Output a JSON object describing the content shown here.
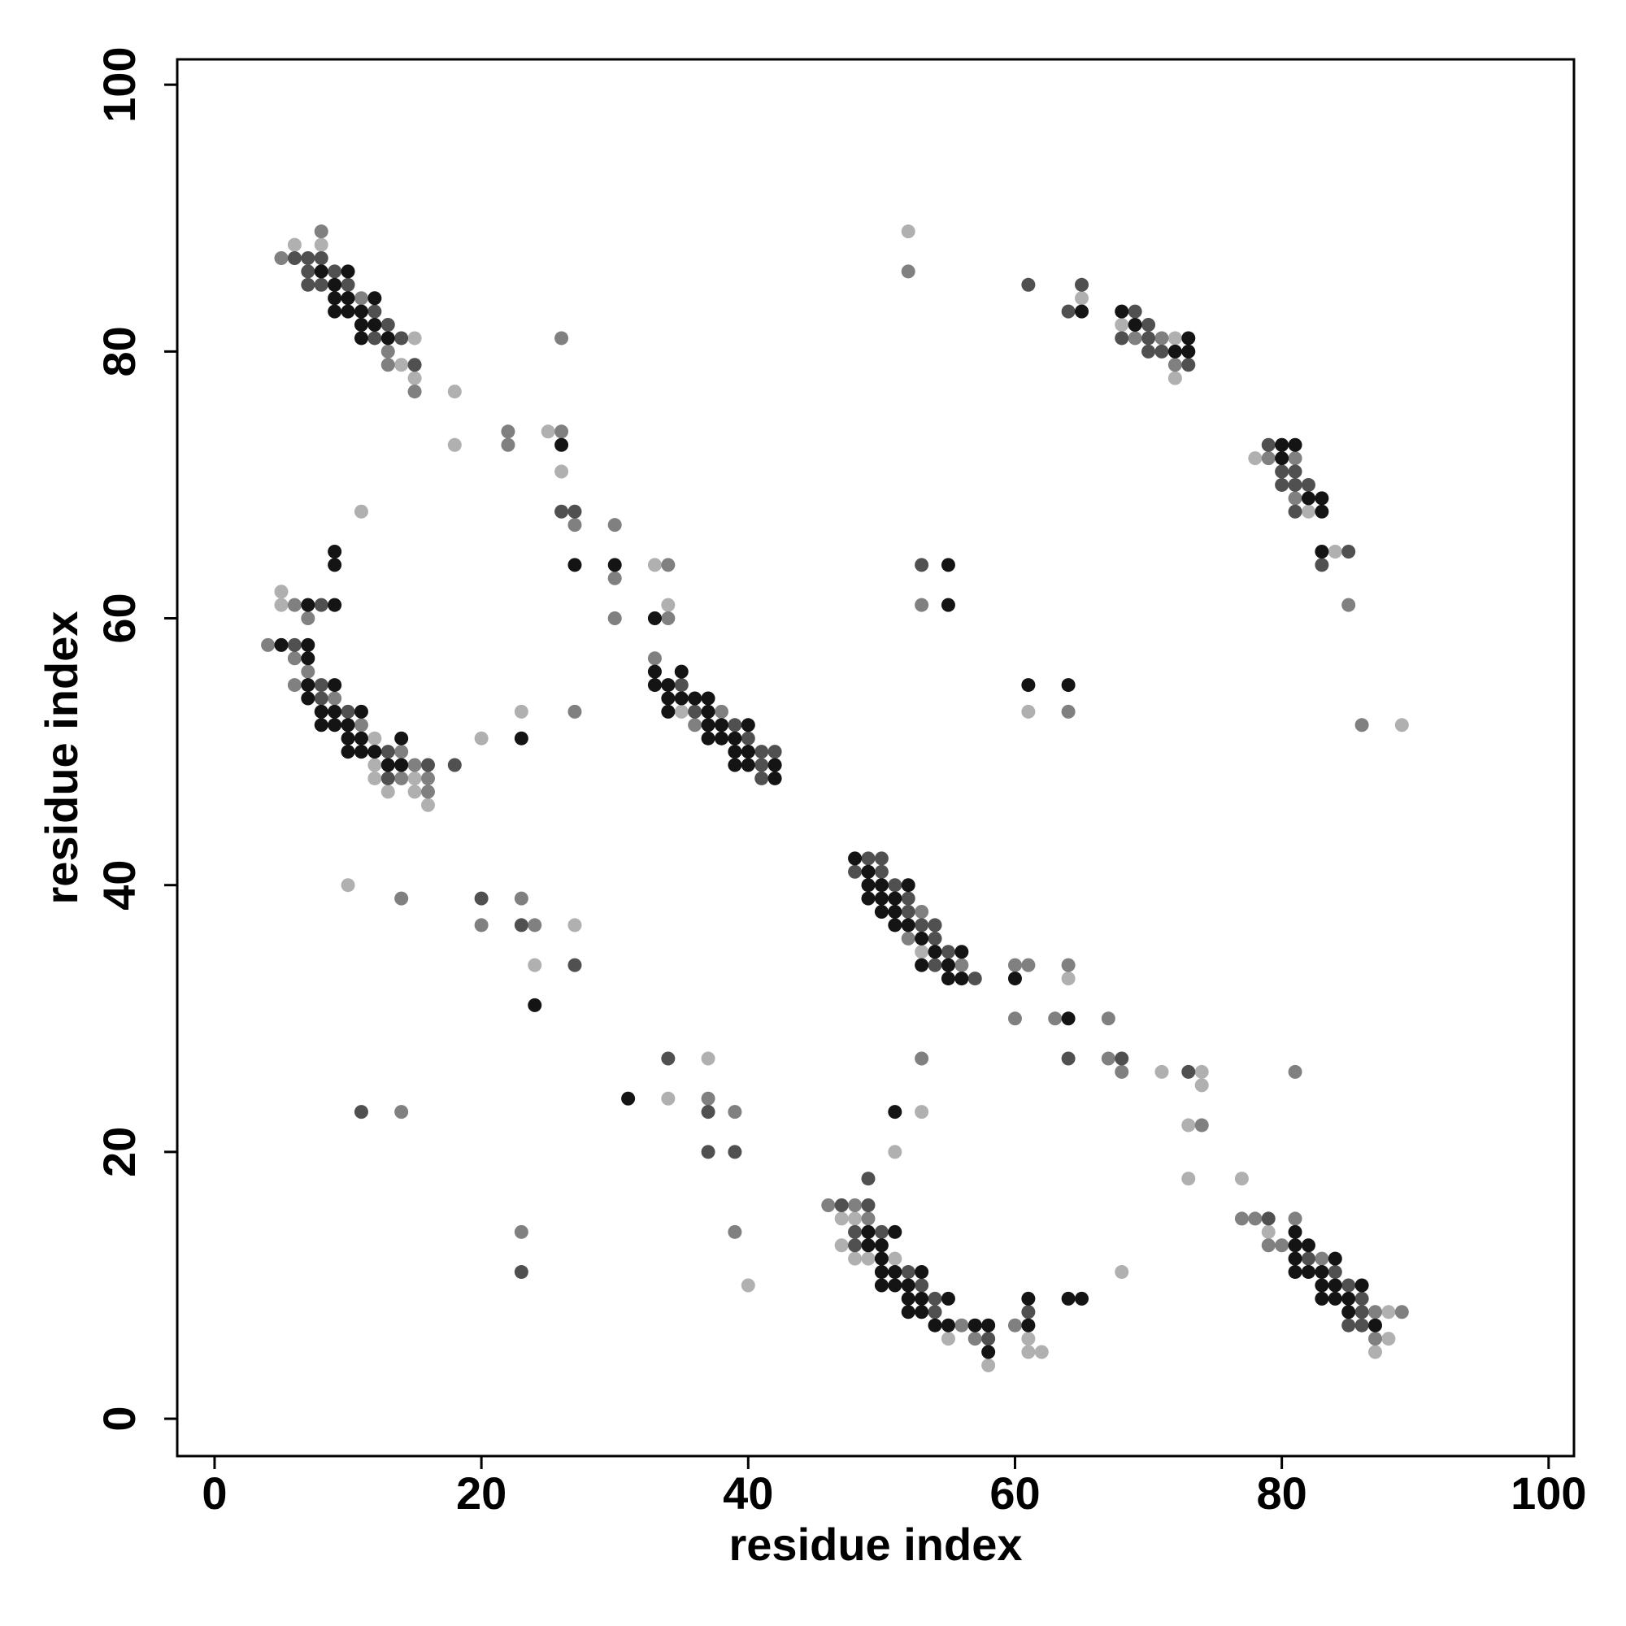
{
  "chart_data": {
    "type": "scatter",
    "x_label": "residue index",
    "y_label": "residue index",
    "xlim": [
      -2.8,
      101.9
    ],
    "ylim": [
      -2.8,
      101.9
    ],
    "xticks": [
      0,
      20,
      40,
      60,
      80,
      100
    ],
    "yticks": [
      0,
      20,
      40,
      60,
      80,
      100
    ],
    "series": [
      {
        "color": "#b0b0b0",
        "x": [
          6,
          8,
          15,
          14,
          15,
          18,
          18,
          25,
          26,
          33,
          34,
          11,
          5,
          5,
          12,
          12,
          12,
          15,
          13,
          15,
          16,
          20,
          23,
          35,
          10,
          27,
          24,
          34,
          37,
          40,
          53,
          64,
          71,
          74,
          74,
          73,
          73,
          77,
          53,
          51,
          52,
          65,
          68,
          72,
          72,
          78,
          82,
          84,
          89,
          61,
          47,
          48,
          47,
          48,
          49,
          51,
          55,
          58,
          61,
          61,
          62,
          68,
          79,
          88,
          88,
          87
        ],
        "y": [
          88,
          88,
          81,
          79,
          78,
          77,
          73,
          74,
          71,
          64,
          61,
          68,
          62,
          61,
          51,
          49,
          48,
          48,
          47,
          47,
          46,
          51,
          53,
          53,
          40,
          37,
          34,
          24,
          27,
          10,
          35,
          33,
          26,
          26,
          25,
          22,
          18,
          18,
          23,
          20,
          89,
          84,
          82,
          81,
          78,
          72,
          68,
          65,
          52,
          53,
          15,
          15,
          13,
          12,
          12,
          12,
          6,
          4,
          6,
          5,
          5,
          11,
          14,
          8,
          6,
          5
        ]
      },
      {
        "color": "#808080",
        "x": [
          5,
          8,
          11,
          13,
          13,
          15,
          22,
          22,
          26,
          26,
          27,
          30,
          30,
          30,
          34,
          34,
          6,
          7,
          4,
          6,
          7,
          6,
          9,
          11,
          14,
          15,
          14,
          16,
          16,
          33,
          38,
          36,
          27,
          14,
          20,
          23,
          24,
          14,
          37,
          39,
          23,
          39,
          53,
          52,
          56,
          60,
          61,
          64,
          60,
          63,
          67,
          67,
          68,
          74,
          81,
          53,
          52,
          69,
          71,
          72,
          79,
          81,
          81,
          85,
          86,
          53,
          64,
          46,
          48,
          49,
          56,
          57,
          60,
          77,
          78,
          81,
          79,
          80,
          83,
          87,
          89,
          87
        ],
        "y": [
          87,
          89,
          84,
          80,
          79,
          77,
          74,
          73,
          74,
          81,
          67,
          67,
          63,
          60,
          64,
          60,
          61,
          60,
          58,
          57,
          56,
          55,
          54,
          52,
          50,
          49,
          48,
          48,
          47,
          57,
          53,
          52,
          53,
          39,
          37,
          39,
          37,
          23,
          24,
          23,
          14,
          14,
          38,
          36,
          34,
          34,
          34,
          34,
          30,
          30,
          30,
          27,
          26,
          22,
          26,
          27,
          86,
          81,
          81,
          79,
          72,
          72,
          69,
          61,
          52,
          61,
          53,
          16,
          16,
          15,
          7,
          6,
          7,
          15,
          15,
          15,
          13,
          13,
          12,
          8,
          8,
          6
        ]
      },
      {
        "color": "#505050",
        "x": [
          6,
          7,
          8,
          7,
          9,
          7,
          8,
          10,
          12,
          13,
          12,
          14,
          15,
          26,
          27,
          8,
          6,
          8,
          8,
          10,
          13,
          16,
          13,
          18,
          35,
          36,
          39,
          40,
          41,
          42,
          41,
          41,
          20,
          23,
          27,
          11,
          34,
          37,
          37,
          39,
          23,
          49,
          50,
          48,
          50,
          51,
          52,
          52,
          53,
          54,
          54,
          55,
          54,
          57,
          64,
          68,
          73,
          49,
          61,
          65,
          64,
          69,
          70,
          68,
          70,
          70,
          71,
          73,
          79,
          80,
          81,
          80,
          81,
          82,
          81,
          85,
          83,
          53,
          47,
          49,
          48,
          50,
          48,
          52,
          53,
          54,
          54,
          58,
          61,
          79,
          82,
          84,
          85,
          86,
          86,
          85,
          86
        ],
        "y": [
          87,
          87,
          87,
          86,
          86,
          85,
          85,
          85,
          83,
          82,
          81,
          81,
          79,
          68,
          68,
          61,
          58,
          55,
          54,
          53,
          50,
          49,
          48,
          49,
          55,
          53,
          52,
          51,
          50,
          50,
          49,
          48,
          39,
          37,
          34,
          23,
          27,
          23,
          20,
          20,
          11,
          42,
          42,
          41,
          41,
          40,
          39,
          38,
          37,
          37,
          36,
          35,
          34,
          33,
          27,
          27,
          26,
          18,
          85,
          85,
          83,
          83,
          82,
          81,
          81,
          80,
          80,
          79,
          73,
          71,
          71,
          70,
          70,
          70,
          68,
          65,
          64,
          64,
          16,
          16,
          14,
          14,
          13,
          11,
          10,
          9,
          8,
          6,
          8,
          15,
          12,
          11,
          10,
          9,
          8,
          7,
          7
        ]
      },
      {
        "color": "#141414",
        "x": [
          26,
          27,
          30,
          33,
          9,
          9,
          8,
          10,
          9,
          9,
          10,
          12,
          9,
          10,
          11,
          11,
          12,
          11,
          13,
          7,
          9,
          5,
          7,
          7,
          7,
          9,
          7,
          8,
          9,
          11,
          8,
          9,
          10,
          10,
          11,
          10,
          11,
          12,
          14,
          13,
          14,
          23,
          33,
          35,
          33,
          34,
          34,
          35,
          36,
          37,
          34,
          37,
          37,
          38,
          40,
          37,
          38,
          39,
          39,
          40,
          39,
          40,
          42,
          42,
          24,
          31,
          48,
          49,
          49,
          50,
          52,
          49,
          50,
          51,
          50,
          51,
          51,
          52,
          53,
          54,
          56,
          53,
          55,
          55,
          56,
          60,
          64,
          51,
          65,
          68,
          69,
          73,
          72,
          73,
          80,
          81,
          80,
          82,
          83,
          83,
          83,
          55,
          55,
          61,
          64,
          49,
          51,
          49,
          50,
          50,
          50,
          51,
          53,
          50,
          51,
          52,
          52,
          53,
          55,
          52,
          53,
          54,
          55,
          57,
          58,
          58,
          61,
          61,
          64,
          65,
          81,
          81,
          82,
          81,
          84,
          81,
          82,
          83,
          83,
          84,
          86,
          83,
          84,
          85,
          85,
          87
        ],
        "y": [
          73,
          64,
          64,
          60,
          65,
          64,
          86,
          86,
          85,
          84,
          84,
          84,
          83,
          83,
          83,
          82,
          82,
          81,
          81,
          61,
          61,
          58,
          58,
          57,
          55,
          55,
          54,
          53,
          53,
          53,
          52,
          52,
          52,
          51,
          51,
          50,
          50,
          50,
          51,
          49,
          49,
          51,
          56,
          56,
          55,
          55,
          54,
          54,
          54,
          54,
          53,
          53,
          52,
          52,
          52,
          51,
          51,
          51,
          50,
          50,
          49,
          49,
          49,
          48,
          31,
          24,
          42,
          41,
          40,
          40,
          40,
          39,
          39,
          39,
          38,
          38,
          37,
          37,
          36,
          35,
          35,
          34,
          34,
          33,
          33,
          33,
          30,
          23,
          83,
          83,
          82,
          81,
          80,
          80,
          73,
          73,
          72,
          69,
          69,
          68,
          65,
          64,
          61,
          55,
          55,
          14,
          14,
          13,
          13,
          12,
          11,
          11,
          11,
          10,
          10,
          10,
          9,
          9,
          9,
          8,
          8,
          7,
          7,
          7,
          7,
          5,
          9,
          7,
          9,
          9,
          14,
          13,
          13,
          12,
          12,
          11,
          11,
          11,
          10,
          10,
          10,
          9,
          9,
          9,
          8,
          7
        ]
      }
    ]
  }
}
